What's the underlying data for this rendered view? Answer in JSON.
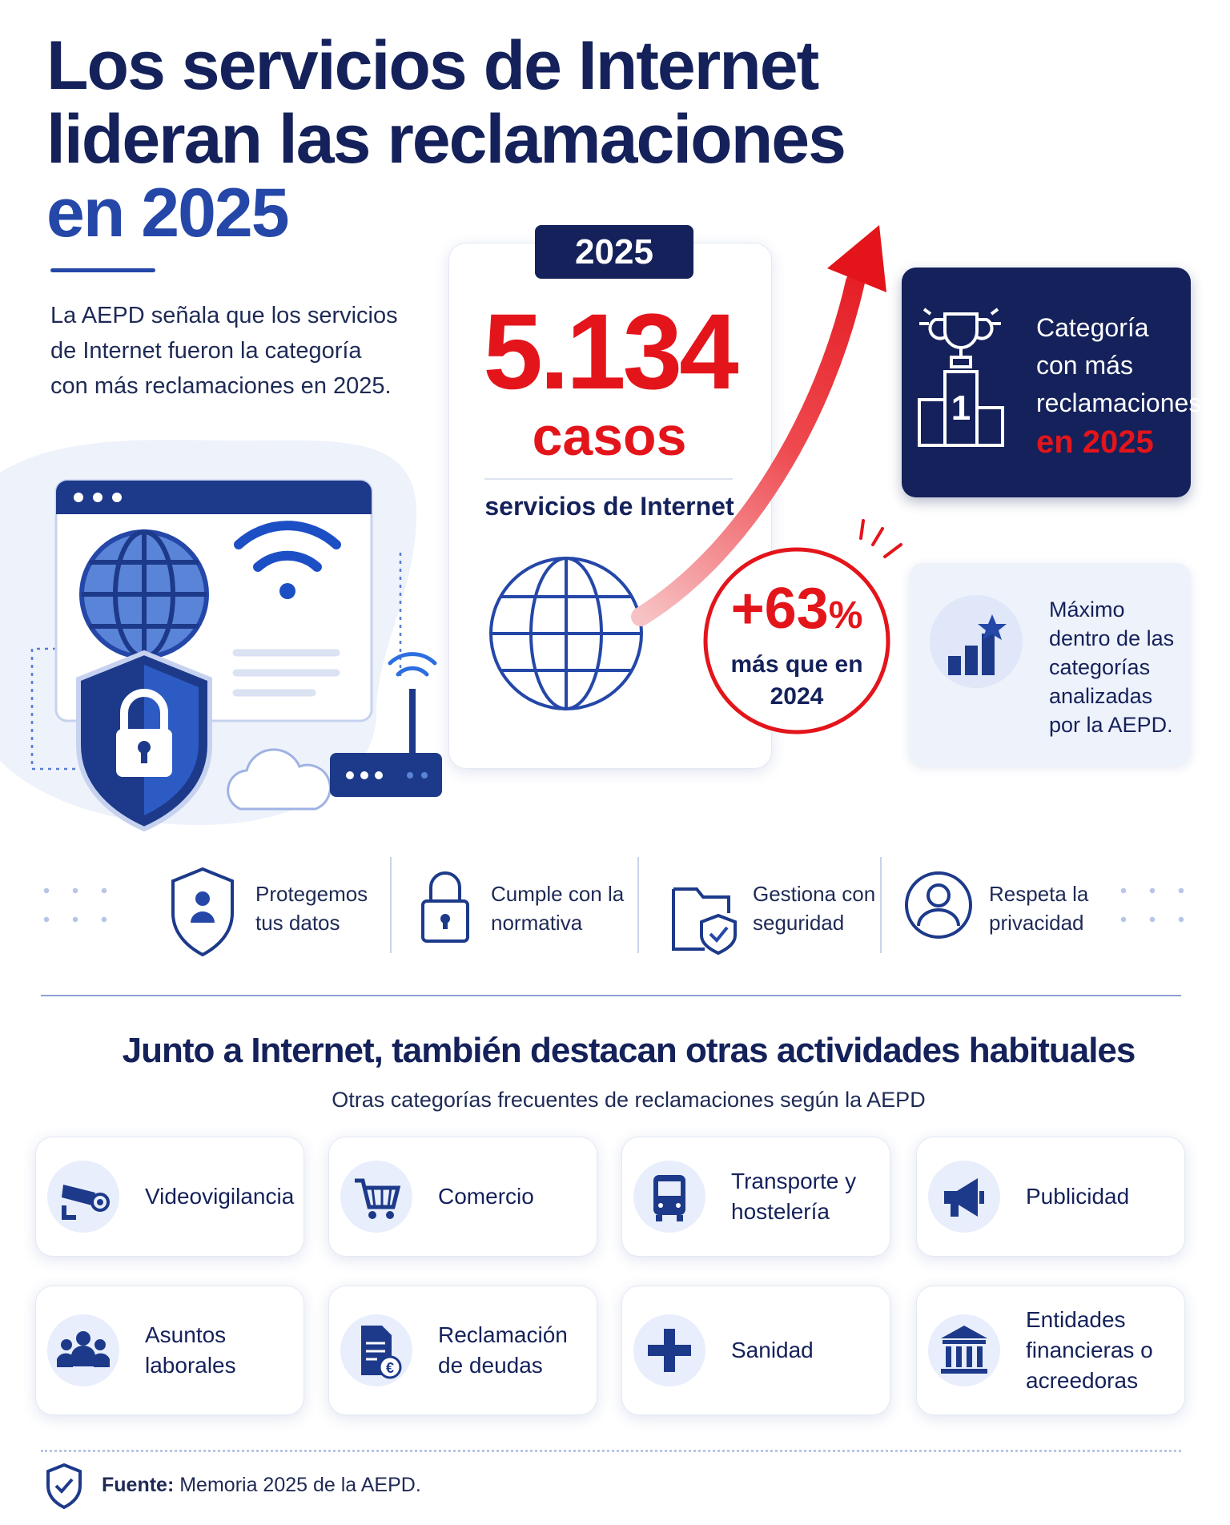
{
  "header": {
    "title_lines": [
      "Los servicios de Internet",
      "lideran las reclamaciones",
      "en 2025"
    ],
    "intro": "La AEPD señala que los servicios de Internet fueron la categoría con más reclamaciones en 2025."
  },
  "highlight": {
    "year": "2025",
    "number": "5.134",
    "unit": "casos",
    "category": "servicios de Internet"
  },
  "growth": {
    "value": "+63",
    "suffix": "%",
    "text": "más que en 2024"
  },
  "rank_card": {
    "badge": "1",
    "label": "Categoría con más reclamaciones",
    "highlight": "en 2025"
  },
  "max_card": {
    "text": "Máximo dentro de las categorías analizadas por la AEPD."
  },
  "features": [
    {
      "label": "Protegemos tus datos"
    },
    {
      "label": "Cumple con la normativa"
    },
    {
      "label": "Gestiona con seguridad"
    },
    {
      "label": "Respeta la privacidad"
    }
  ],
  "section": {
    "title": "Junto a Internet, también destacan otras actividades habituales",
    "subtitle": "Otras categorías frecuentes de reclamaciones según la AEPD"
  },
  "categories": [
    {
      "label": "Videovigilancia"
    },
    {
      "label": "Comercio"
    },
    {
      "label": "Transporte y hostelería"
    },
    {
      "label": "Publicidad"
    },
    {
      "label": "Asuntos laborales"
    },
    {
      "label": "Reclamación de deudas"
    },
    {
      "label": "Sanidad"
    },
    {
      "label": "Entidades financieras o acreedoras"
    }
  ],
  "footer": {
    "label": "Fuente:",
    "text": "Memoria 2025 de la AEPD."
  }
}
